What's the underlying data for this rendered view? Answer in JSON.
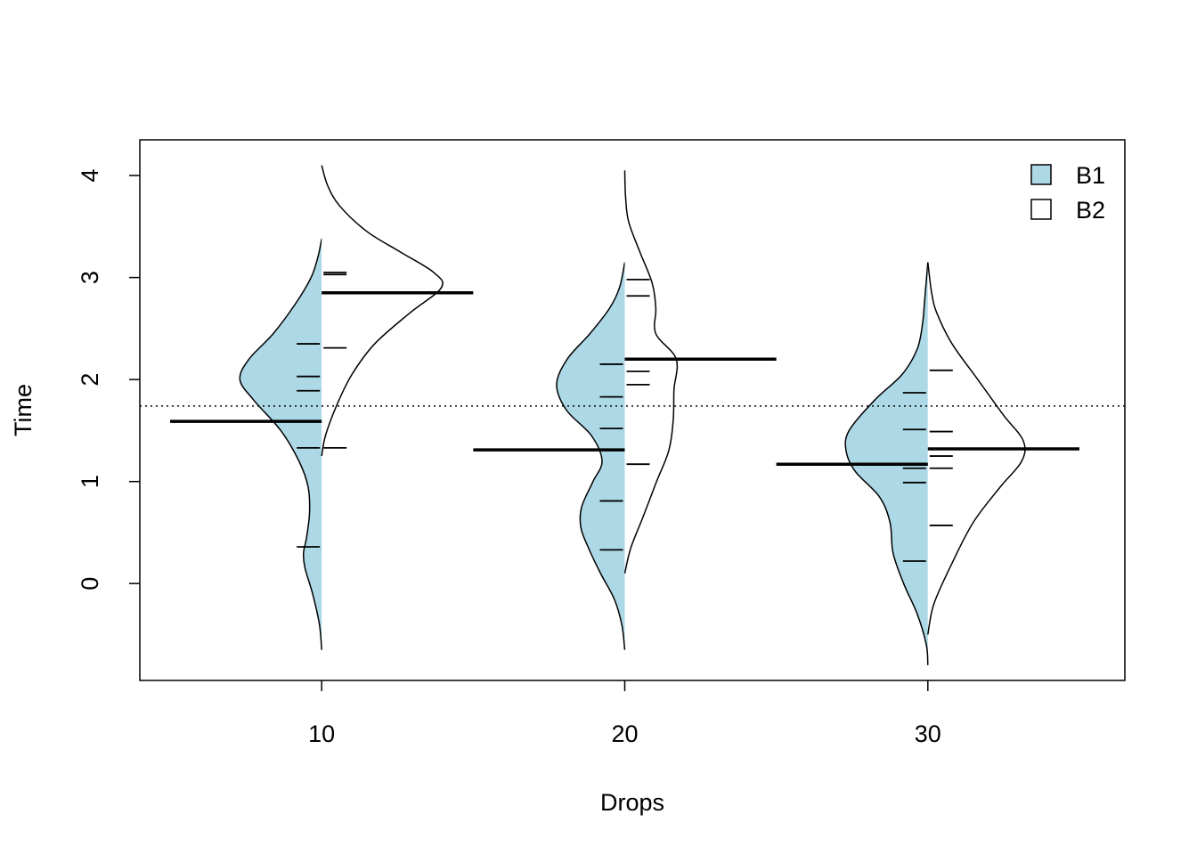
{
  "chart_data": {
    "type": "beanplot",
    "title": "",
    "xlabel": "Drops",
    "ylabel": "Time",
    "xlim": [
      4,
      36.5
    ],
    "ylim": [
      -0.95,
      4.35
    ],
    "x_ticks": [
      10,
      20,
      30
    ],
    "y_ticks": [
      0,
      1,
      2,
      3,
      4
    ],
    "overall_mean": 1.74,
    "grid": false,
    "legend_position": "top-right",
    "colors": {
      "B1": "#add8e6",
      "B2": "#ffffff",
      "line": "#000000"
    },
    "series": [
      {
        "name": "B1",
        "side": "left",
        "fill": "#add8e6",
        "groups": [
          {
            "category": 10,
            "mean": 1.59,
            "observations": [
              0.36,
              1.33,
              1.89,
              2.03,
              2.35
            ],
            "density": [
              [
                -0.65,
                0
              ],
              [
                -0.4,
                0.15
              ],
              [
                -0.1,
                0.6
              ],
              [
                0.15,
                1.1
              ],
              [
                0.3,
                1.2
              ],
              [
                0.45,
                1.0
              ],
              [
                0.7,
                0.8
              ],
              [
                0.95,
                0.9
              ],
              [
                1.2,
                1.5
              ],
              [
                1.5,
                2.7
              ],
              [
                1.8,
                4.5
              ],
              [
                2.0,
                5.4
              ],
              [
                2.2,
                4.8
              ],
              [
                2.45,
                3.2
              ],
              [
                2.75,
                1.7
              ],
              [
                3.0,
                0.7
              ],
              [
                3.2,
                0.25
              ],
              [
                3.38,
                0
              ]
            ]
          },
          {
            "category": 20,
            "mean": 1.31,
            "observations": [
              0.33,
              0.81,
              1.52,
              1.83,
              2.15
            ],
            "density": [
              [
                -0.65,
                0
              ],
              [
                -0.4,
                0.2
              ],
              [
                -0.15,
                0.7
              ],
              [
                0.1,
                1.6
              ],
              [
                0.35,
                2.4
              ],
              [
                0.55,
                2.9
              ],
              [
                0.75,
                2.85
              ],
              [
                1.0,
                2.1
              ],
              [
                1.2,
                1.5
              ],
              [
                1.45,
                2.2
              ],
              [
                1.7,
                3.85
              ],
              [
                1.95,
                4.5
              ],
              [
                2.2,
                3.8
              ],
              [
                2.45,
                2.3
              ],
              [
                2.7,
                1.0
              ],
              [
                2.9,
                0.35
              ],
              [
                3.15,
                0
              ]
            ]
          },
          {
            "category": 30,
            "mean": 1.17,
            "observations": [
              0.22,
              0.99,
              1.13,
              1.51,
              1.87
            ],
            "density": [
              [
                -0.8,
                0
              ],
              [
                -0.6,
                0.1
              ],
              [
                -0.3,
                0.7
              ],
              [
                0.0,
                1.6
              ],
              [
                0.3,
                2.3
              ],
              [
                0.6,
                2.5
              ],
              [
                0.85,
                3.2
              ],
              [
                1.1,
                4.8
              ],
              [
                1.3,
                5.4
              ],
              [
                1.5,
                5.2
              ],
              [
                1.8,
                3.5
              ],
              [
                2.05,
                1.7
              ],
              [
                2.3,
                0.7
              ],
              [
                2.55,
                0.35
              ],
              [
                2.8,
                0.2
              ],
              [
                3.15,
                0
              ]
            ]
          }
        ]
      },
      {
        "name": "B2",
        "side": "right",
        "fill": "#ffffff",
        "groups": [
          {
            "category": 10,
            "mean": 2.85,
            "observations": [
              1.33,
              2.31,
              3.03,
              3.05
            ],
            "density": [
              [
                1.25,
                0
              ],
              [
                1.45,
                0.25
              ],
              [
                1.75,
                1.0
              ],
              [
                2.05,
                2.0
              ],
              [
                2.35,
                3.5
              ],
              [
                2.65,
                5.8
              ],
              [
                2.9,
                7.9
              ],
              [
                3.05,
                7.4
              ],
              [
                3.25,
                5.2
              ],
              [
                3.45,
                3.0
              ],
              [
                3.7,
                1.2
              ],
              [
                3.9,
                0.4
              ],
              [
                4.1,
                0
              ]
            ]
          },
          {
            "category": 20,
            "mean": 2.2,
            "observations": [
              1.17,
              1.95,
              2.08,
              2.82,
              2.98
            ],
            "density": [
              [
                0.1,
                0
              ],
              [
                0.35,
                0.4
              ],
              [
                0.65,
                1.2
              ],
              [
                1.0,
                2.1
              ],
              [
                1.3,
                2.9
              ],
              [
                1.6,
                3.2
              ],
              [
                1.9,
                3.25
              ],
              [
                2.2,
                3.4
              ],
              [
                2.45,
                2.05
              ],
              [
                2.7,
                2.05
              ],
              [
                2.95,
                1.8
              ],
              [
                3.25,
                1.0
              ],
              [
                3.55,
                0.25
              ],
              [
                3.8,
                0.05
              ],
              [
                4.05,
                0
              ]
            ]
          },
          {
            "category": 30,
            "mean": 1.32,
            "observations": [
              0.57,
              1.13,
              1.25,
              1.49,
              2.09
            ],
            "density": [
              [
                -0.5,
                0
              ],
              [
                -0.2,
                0.4
              ],
              [
                0.2,
                1.6
              ],
              [
                0.6,
                3.0
              ],
              [
                0.95,
                4.8
              ],
              [
                1.2,
                6.2
              ],
              [
                1.4,
                6.3
              ],
              [
                1.65,
                5.0
              ],
              [
                2.0,
                3.3
              ],
              [
                2.35,
                1.6
              ],
              [
                2.65,
                0.6
              ],
              [
                2.85,
                0.25
              ],
              [
                3.15,
                0
              ]
            ]
          }
        ]
      }
    ],
    "legend": [
      {
        "label": "B1",
        "fill": "#add8e6"
      },
      {
        "label": "B2",
        "fill": "#ffffff"
      }
    ]
  }
}
